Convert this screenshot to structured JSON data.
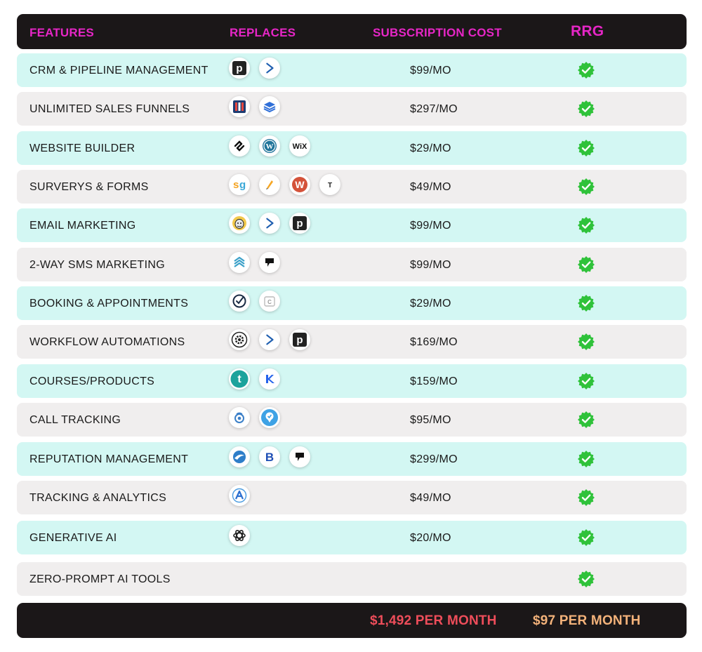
{
  "header": {
    "features": "FEATURES",
    "replaces": "REPLACES",
    "subscription_cost": "SUBSCRIPTION COST",
    "rrg": "RRG"
  },
  "colors": {
    "header_text": "#e626c6",
    "row_teal": "#d3f7f3",
    "row_gray": "#f0eeee",
    "bar_bg": "#1b1718",
    "total_competitor": "#ee4d5a",
    "total_rrg": "#f3b27a",
    "check_green": "#2fc23a"
  },
  "rows": [
    {
      "feature": "CRM & PIPELINE MANAGEMENT",
      "price": "$99/MO",
      "icons": [
        "pipedrive-icon",
        "activecampaign-icon"
      ]
    },
    {
      "feature": "UNLIMITED SALES FUNNELS",
      "price": "$297/MO",
      "icons": [
        "clickfunnels-icon",
        "leadpages-icon"
      ]
    },
    {
      "feature": "WEBSITE BUILDER",
      "price": "$29/MO",
      "icons": [
        "squarespace-icon",
        "wordpress-icon",
        "wix-icon"
      ]
    },
    {
      "feature": "SURVERYS & FORMS",
      "price": "$49/MO",
      "icons": [
        "surveygizmo-icon",
        "jotform-icon",
        "wufoo-icon",
        "typeform-icon"
      ]
    },
    {
      "feature": "EMAIL MARKETING",
      "price": "$99/MO",
      "icons": [
        "mailchimp-icon",
        "activecampaign-icon",
        "pipedrive-icon"
      ]
    },
    {
      "feature": "2-WAY SMS MARKETING",
      "price": "$99/MO",
      "icons": [
        "podium-icon",
        "flag-icon"
      ]
    },
    {
      "feature": "BOOKING & APPOINTMENTS",
      "price": "$29/MO",
      "icons": [
        "acuity-check-icon",
        "calendly-icon"
      ]
    },
    {
      "feature": "WORKFLOW AUTOMATIONS",
      "price": "$169/MO",
      "icons": [
        "gear-automation-icon",
        "activecampaign-icon",
        "pipedrive-icon"
      ]
    },
    {
      "feature": "COURSES/PRODUCTS",
      "price": "$159/MO",
      "icons": [
        "teachable-icon",
        "kajabi-icon"
      ]
    },
    {
      "feature": "CALL TRACKING",
      "price": "$95/MO",
      "icons": [
        "callrail-icon",
        "location-pin-icon"
      ]
    },
    {
      "feature": "REPUTATION MANAGEMENT",
      "price": "$299/MO",
      "icons": [
        "birdeye-icon",
        "b-badge-icon",
        "flag-icon"
      ]
    },
    {
      "feature": "TRACKING & ANALYTICS",
      "price": "$49/MO",
      "icons": [
        "analytics-a-icon"
      ]
    },
    {
      "feature": "GENERATIVE AI",
      "price": "$20/MO",
      "icons": [
        "openai-icon"
      ]
    },
    {
      "feature": "ZERO-PROMPT AI TOOLS",
      "price": "",
      "icons": []
    }
  ],
  "footer": {
    "competitor_total": "$1,492 PER MONTH",
    "rrg_total": "$97 PER MONTH"
  }
}
